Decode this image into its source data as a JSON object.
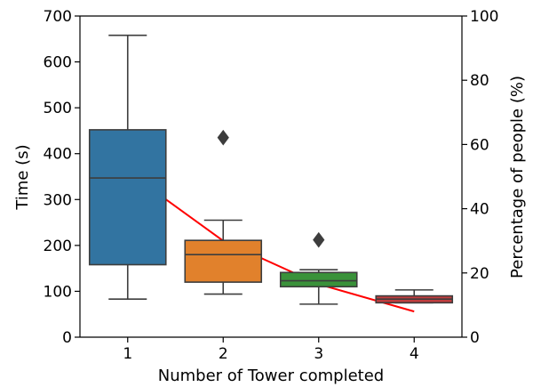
{
  "chart_data": {
    "type": "box",
    "xlabel": "Number of Tower completed",
    "ylabel": "Time (s)",
    "y2label": "Percentage of people (%)",
    "categories": [
      "1",
      "2",
      "3",
      "4"
    ],
    "ylim": [
      0,
      700
    ],
    "yticks": [
      0,
      100,
      200,
      300,
      400,
      500,
      600,
      700
    ],
    "y2lim": [
      0,
      100
    ],
    "y2ticks": [
      0,
      20,
      40,
      60,
      80,
      100
    ],
    "grid": false,
    "boxes": [
      {
        "category": "1",
        "color": "#3274a1",
        "whisker_low": 83,
        "q1": 158,
        "median": 347,
        "q3": 452,
        "whisker_high": 658,
        "outliers": []
      },
      {
        "category": "2",
        "color": "#e1812c",
        "whisker_low": 94,
        "q1": 120,
        "median": 180,
        "q3": 211,
        "whisker_high": 255,
        "outliers": [
          435
        ]
      },
      {
        "category": "3",
        "color": "#3a923a",
        "whisker_low": 72,
        "q1": 110,
        "median": 123,
        "q3": 141,
        "whisker_high": 147,
        "outliers": [
          212
        ]
      },
      {
        "category": "4",
        "color": "#c03d3e",
        "whisker_low": 75,
        "q1": 75,
        "median": 83,
        "q3": 90,
        "whisker_high": 103,
        "outliers": []
      }
    ],
    "trend_line": {
      "color": "#ff0000",
      "axis": "y2",
      "x": [
        "1",
        "2",
        "3",
        "4"
      ],
      "values": [
        51.5,
        30,
        16.5,
        8
      ]
    }
  }
}
